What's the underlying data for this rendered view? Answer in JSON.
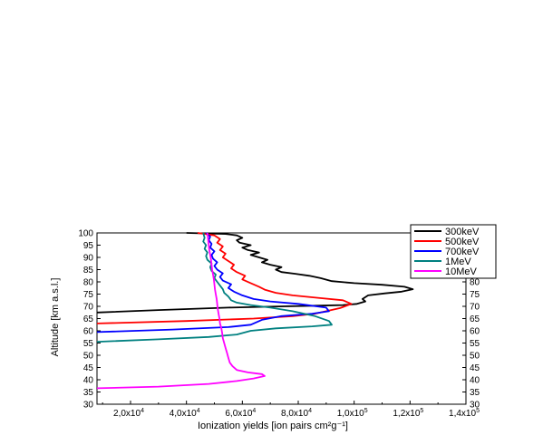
{
  "chart_data": {
    "type": "line",
    "title": "",
    "xlabel": "Ionization yields [ion pairs cm²g⁻¹]",
    "ylabel": "Altitude [km a.s.l.]",
    "xlim": [
      8000,
      140000
    ],
    "ylim": [
      30,
      100
    ],
    "x_ticks": [
      {
        "value": 20000,
        "mantissa": "2,0x10",
        "exp": "4"
      },
      {
        "value": 40000,
        "mantissa": "4,0x10",
        "exp": "4"
      },
      {
        "value": 60000,
        "mantissa": "6,0x10",
        "exp": "4"
      },
      {
        "value": 80000,
        "mantissa": "8,0x10",
        "exp": "4"
      },
      {
        "value": 100000,
        "mantissa": "1,0x10",
        "exp": "5"
      },
      {
        "value": 120000,
        "mantissa": "1,2x10",
        "exp": "5"
      },
      {
        "value": 140000,
        "mantissa": "1,4x10",
        "exp": "5"
      }
    ],
    "y_ticks": [
      30,
      35,
      40,
      45,
      50,
      55,
      60,
      65,
      70,
      75,
      80,
      85,
      90,
      95,
      100
    ],
    "grid": false,
    "legend_position": "top-right",
    "series": [
      {
        "name": "300keV",
        "color": "#000000",
        "points": [
          [
            8000,
            67.5
          ],
          [
            30000,
            68.5
          ],
          [
            55000,
            69.5
          ],
          [
            75000,
            70
          ],
          [
            88000,
            70.3
          ],
          [
            96000,
            70.5
          ],
          [
            101000,
            71
          ],
          [
            104000,
            72
          ],
          [
            103000,
            73
          ],
          [
            105000,
            74.5
          ],
          [
            111000,
            75.3
          ],
          [
            117000,
            76
          ],
          [
            121000,
            77
          ],
          [
            118000,
            78
          ],
          [
            110000,
            78.8
          ],
          [
            100000,
            79.5
          ],
          [
            92000,
            80.3
          ],
          [
            88000,
            81.5
          ],
          [
            84000,
            82.5
          ],
          [
            79000,
            83.3
          ],
          [
            74000,
            84
          ],
          [
            72000,
            85
          ],
          [
            74000,
            86
          ],
          [
            70000,
            87
          ],
          [
            67000,
            88
          ],
          [
            69000,
            89
          ],
          [
            66000,
            90
          ],
          [
            63000,
            91
          ],
          [
            66000,
            92
          ],
          [
            62000,
            93
          ],
          [
            60000,
            94
          ],
          [
            63000,
            95
          ],
          [
            59000,
            96
          ],
          [
            58000,
            97
          ],
          [
            60000,
            98
          ],
          [
            58000,
            99
          ],
          [
            54000,
            99.6
          ],
          [
            40000,
            100
          ]
        ]
      },
      {
        "name": "500keV",
        "color": "#ff0000",
        "points": [
          [
            8000,
            63
          ],
          [
            40000,
            64
          ],
          [
            64000,
            65
          ],
          [
            78000,
            66
          ],
          [
            86000,
            67
          ],
          [
            90000,
            68
          ],
          [
            95000,
            69.3
          ],
          [
            99000,
            71
          ],
          [
            96000,
            72.5
          ],
          [
            87000,
            73.5
          ],
          [
            78000,
            74.5
          ],
          [
            72000,
            75.5
          ],
          [
            68000,
            76.8
          ],
          [
            66000,
            78
          ],
          [
            63000,
            79.5
          ],
          [
            60000,
            81
          ],
          [
            61000,
            82.5
          ],
          [
            58000,
            84
          ],
          [
            56000,
            85.5
          ],
          [
            57000,
            87
          ],
          [
            55000,
            88.5
          ],
          [
            53000,
            90
          ],
          [
            54000,
            91.5
          ],
          [
            52000,
            93
          ],
          [
            53000,
            94.5
          ],
          [
            51000,
            96
          ],
          [
            52000,
            97.5
          ],
          [
            50000,
            99
          ],
          [
            44000,
            100
          ]
        ]
      },
      {
        "name": "700keV",
        "color": "#0000ff",
        "points": [
          [
            8000,
            59.5
          ],
          [
            35000,
            60.5
          ],
          [
            55000,
            61.5
          ],
          [
            63000,
            62.5
          ],
          [
            67000,
            64.5
          ],
          [
            74000,
            66
          ],
          [
            85000,
            67
          ],
          [
            91000,
            68
          ],
          [
            90000,
            69.5
          ],
          [
            80000,
            71
          ],
          [
            70000,
            72
          ],
          [
            64000,
            73
          ],
          [
            60000,
            74.5
          ],
          [
            57000,
            76
          ],
          [
            55000,
            77.5
          ],
          [
            56000,
            79
          ],
          [
            53000,
            80.5
          ],
          [
            52000,
            82
          ],
          [
            53000,
            83.5
          ],
          [
            51000,
            85
          ],
          [
            50000,
            86.5
          ],
          [
            51000,
            88
          ],
          [
            49500,
            89.5
          ],
          [
            49000,
            91
          ],
          [
            50000,
            92.5
          ],
          [
            48500,
            94
          ],
          [
            49000,
            95.5
          ],
          [
            48000,
            97
          ],
          [
            48500,
            98.5
          ],
          [
            47000,
            100
          ]
        ]
      },
      {
        "name": "1MeV",
        "color": "#008080",
        "points": [
          [
            8000,
            55.5
          ],
          [
            30000,
            56.5
          ],
          [
            48000,
            57.5
          ],
          [
            58000,
            58.5
          ],
          [
            63000,
            60
          ],
          [
            72000,
            61
          ],
          [
            85000,
            61.8
          ],
          [
            92000,
            62.5
          ],
          [
            91000,
            64
          ],
          [
            86000,
            66
          ],
          [
            78000,
            68
          ],
          [
            70000,
            69.5
          ],
          [
            63000,
            70.5
          ],
          [
            58000,
            71.5
          ],
          [
            56000,
            72.5
          ],
          [
            55000,
            74
          ],
          [
            53500,
            75.5
          ],
          [
            53000,
            77
          ],
          [
            52000,
            78.5
          ],
          [
            51000,
            80
          ],
          [
            50000,
            81.5
          ],
          [
            50500,
            83
          ],
          [
            49000,
            84.5
          ],
          [
            48500,
            86
          ],
          [
            49000,
            87.5
          ],
          [
            47500,
            89
          ],
          [
            47000,
            90.5
          ],
          [
            47500,
            92
          ],
          [
            46500,
            93.5
          ],
          [
            47000,
            95
          ],
          [
            46000,
            96.5
          ],
          [
            46500,
            98
          ],
          [
            46000,
            100
          ]
        ]
      },
      {
        "name": "10MeV",
        "color": "#ff00ff",
        "points": [
          [
            8000,
            36.5
          ],
          [
            30000,
            37.2
          ],
          [
            48000,
            38.3
          ],
          [
            58000,
            39.5
          ],
          [
            64000,
            40.5
          ],
          [
            68000,
            41.5
          ],
          [
            67000,
            42.3
          ],
          [
            62000,
            43
          ],
          [
            58000,
            44
          ],
          [
            56500,
            45.5
          ],
          [
            55500,
            47
          ],
          [
            55000,
            49
          ],
          [
            54500,
            51
          ],
          [
            54000,
            53
          ],
          [
            53500,
            55
          ],
          [
            53000,
            57
          ],
          [
            52800,
            59
          ],
          [
            52500,
            61
          ],
          [
            52000,
            63
          ],
          [
            51800,
            65
          ],
          [
            51500,
            67
          ],
          [
            51200,
            69
          ],
          [
            51000,
            71
          ],
          [
            50800,
            73
          ],
          [
            50500,
            75
          ],
          [
            50200,
            77
          ],
          [
            50000,
            79
          ],
          [
            49800,
            81
          ],
          [
            49500,
            83
          ],
          [
            49200,
            85
          ],
          [
            49000,
            87
          ],
          [
            48800,
            89
          ],
          [
            48500,
            91
          ],
          [
            48200,
            93
          ],
          [
            48000,
            95
          ],
          [
            47800,
            97
          ],
          [
            47600,
            99
          ],
          [
            47500,
            100
          ]
        ]
      }
    ]
  }
}
